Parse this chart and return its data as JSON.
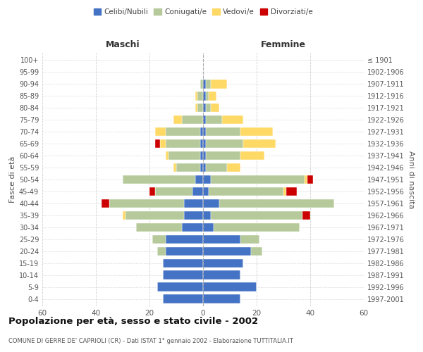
{
  "age_groups": [
    "0-4",
    "5-9",
    "10-14",
    "15-19",
    "20-24",
    "25-29",
    "30-34",
    "35-39",
    "40-44",
    "45-49",
    "50-54",
    "55-59",
    "60-64",
    "65-69",
    "70-74",
    "75-79",
    "80-84",
    "85-89",
    "90-94",
    "95-99",
    "100+"
  ],
  "birth_years": [
    "1997-2001",
    "1992-1996",
    "1987-1991",
    "1982-1986",
    "1977-1981",
    "1972-1976",
    "1967-1971",
    "1962-1966",
    "1957-1961",
    "1952-1956",
    "1947-1951",
    "1942-1946",
    "1937-1941",
    "1932-1936",
    "1927-1931",
    "1922-1926",
    "1917-1921",
    "1912-1916",
    "1907-1911",
    "1902-1906",
    "≤ 1901"
  ],
  "male": {
    "celibi": [
      15,
      17,
      15,
      15,
      14,
      14,
      8,
      7,
      7,
      4,
      3,
      1,
      1,
      1,
      1,
      0,
      0,
      0,
      0,
      0,
      0
    ],
    "coniugati": [
      0,
      0,
      0,
      0,
      3,
      5,
      17,
      22,
      28,
      14,
      27,
      9,
      12,
      13,
      13,
      8,
      2,
      2,
      1,
      0,
      0
    ],
    "vedovi": [
      0,
      0,
      0,
      0,
      0,
      0,
      0,
      1,
      0,
      0,
      0,
      1,
      1,
      2,
      4,
      3,
      1,
      1,
      0,
      0,
      0
    ],
    "divorziati": [
      0,
      0,
      0,
      0,
      0,
      0,
      0,
      0,
      3,
      2,
      0,
      0,
      0,
      2,
      0,
      0,
      0,
      0,
      0,
      0,
      0
    ]
  },
  "female": {
    "nubili": [
      14,
      20,
      14,
      15,
      18,
      14,
      4,
      3,
      6,
      2,
      3,
      1,
      1,
      1,
      1,
      1,
      1,
      1,
      1,
      0,
      0
    ],
    "coniugate": [
      0,
      0,
      0,
      0,
      4,
      7,
      32,
      34,
      43,
      28,
      35,
      8,
      13,
      14,
      13,
      6,
      2,
      1,
      2,
      0,
      0
    ],
    "vedove": [
      0,
      0,
      0,
      0,
      0,
      0,
      0,
      0,
      0,
      1,
      1,
      5,
      9,
      12,
      12,
      8,
      3,
      3,
      6,
      0,
      0
    ],
    "divorziate": [
      0,
      0,
      0,
      0,
      0,
      0,
      0,
      3,
      0,
      4,
      2,
      0,
      0,
      0,
      0,
      0,
      0,
      0,
      0,
      0,
      0
    ]
  },
  "colors": {
    "celibi": "#4472c4",
    "coniugati": "#b5c99a",
    "vedovi": "#ffd966",
    "divorziati": "#cc0000"
  },
  "title": "Popolazione per età, sesso e stato civile - 2002",
  "subtitle": "COMUNE DI GERRE DE' CAPRIOLI (CR) - Dati ISTAT 1° gennaio 2002 - Elaborazione TUTTITALIA.IT",
  "ylabel_left": "Fasce di età",
  "ylabel_right": "Anni di nascita",
  "xlabel_left": "Maschi",
  "xlabel_right": "Femmine",
  "xlim": 60,
  "bg_color": "#ffffff",
  "grid_color": "#cccccc",
  "bar_height": 0.75
}
